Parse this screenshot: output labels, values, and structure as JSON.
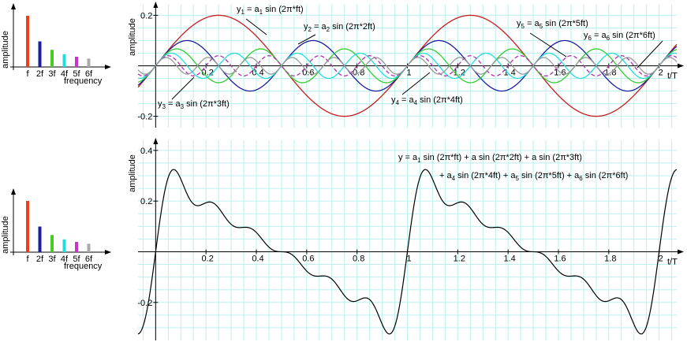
{
  "chart_data": [
    {
      "type": "spectrum",
      "ylabel": "amplitude",
      "xlabel": "frequency",
      "categories": [
        "f",
        "2f",
        "3f",
        "4f",
        "5f",
        "6f"
      ],
      "values": [
        0.2,
        0.1,
        0.067,
        0.05,
        0.04,
        0.033
      ],
      "colors": [
        "#e8401c",
        "#1c1ca0",
        "#44cc22",
        "#22dddd",
        "#cc33cc",
        "#aaaaaa"
      ]
    },
    {
      "type": "harmonics",
      "ylabel": "amplitude",
      "xlabel": "t/T",
      "xlim": [
        -0.07,
        2.07
      ],
      "ylim": [
        -0.245,
        0.245
      ],
      "xticks": [
        0.2,
        0.4,
        0.6,
        0.8,
        1,
        1.2,
        1.4,
        1.6,
        1.8,
        2
      ],
      "yticks": [
        0.2,
        -0.2
      ],
      "grid_step": 0.05,
      "series": [
        {
          "harmonic": 1,
          "amplitude": 0.2,
          "color": "#c41e1e",
          "dashed": false,
          "label": [
            "y",
            "1",
            " =   a",
            "1",
            " sin (2π*ft)"
          ]
        },
        {
          "harmonic": 2,
          "amplitude": 0.1,
          "color": "#1c1ca0",
          "dashed": false,
          "label": [
            "y",
            "2",
            " =   a",
            "2",
            " sin (2π*2ft)"
          ]
        },
        {
          "harmonic": 3,
          "amplitude": 0.067,
          "color": "#33cc33",
          "dashed": false,
          "label": [
            "y",
            "3",
            " =   a",
            "3",
            " sin (2π*3ft)"
          ]
        },
        {
          "harmonic": 4,
          "amplitude": 0.05,
          "color": "#22dddd",
          "dashed": false,
          "label": [
            "y",
            "4",
            " =   a",
            "4",
            " sin (2π*4ft)"
          ]
        },
        {
          "harmonic": 5,
          "amplitude": 0.04,
          "color": "#b030b0",
          "dashed": true,
          "label": [
            "y",
            "5",
            " =   a",
            "5",
            " sin (2π*5ft)"
          ]
        },
        {
          "harmonic": 6,
          "amplitude": 0.033,
          "color": "#999999",
          "dashed": false,
          "label": [
            "y",
            "6",
            " =   a",
            "6",
            " sin (2π*6ft)"
          ]
        }
      ]
    },
    {
      "type": "spectrum",
      "ylabel": "amplitude",
      "xlabel": "frequency",
      "categories": [
        "f",
        "2f",
        "3f",
        "4f",
        "5f",
        "6f"
      ],
      "values": [
        0.2,
        0.1,
        0.067,
        0.05,
        0.04,
        0.033
      ],
      "colors": [
        "#e8401c",
        "#1c1ca0",
        "#44cc22",
        "#22dddd",
        "#cc33cc",
        "#aaaaaa"
      ]
    },
    {
      "type": "sum",
      "ylabel": "amplitude",
      "xlabel": "t/T",
      "xlim": [
        -0.07,
        2.07
      ],
      "ylim": [
        -0.35,
        0.44
      ],
      "xticks": [
        0.2,
        0.4,
        0.6,
        0.8,
        1,
        1.2,
        1.4,
        1.6,
        1.8,
        2
      ],
      "yticks": [
        0.4,
        0.2,
        -0.2
      ],
      "grid_step": 0.05,
      "color": "#000000",
      "formula": [
        [
          "y =  a",
          "1",
          " sin (2π*ft) + a  sin (2π*2ft) + a  sin (2π*3ft)"
        ],
        [
          "+ a",
          "4",
          " sin (2π*4ft) + a",
          "5",
          " sin (2π*5ft) + a",
          "6",
          " sin (2π*6ft)"
        ]
      ]
    }
  ]
}
